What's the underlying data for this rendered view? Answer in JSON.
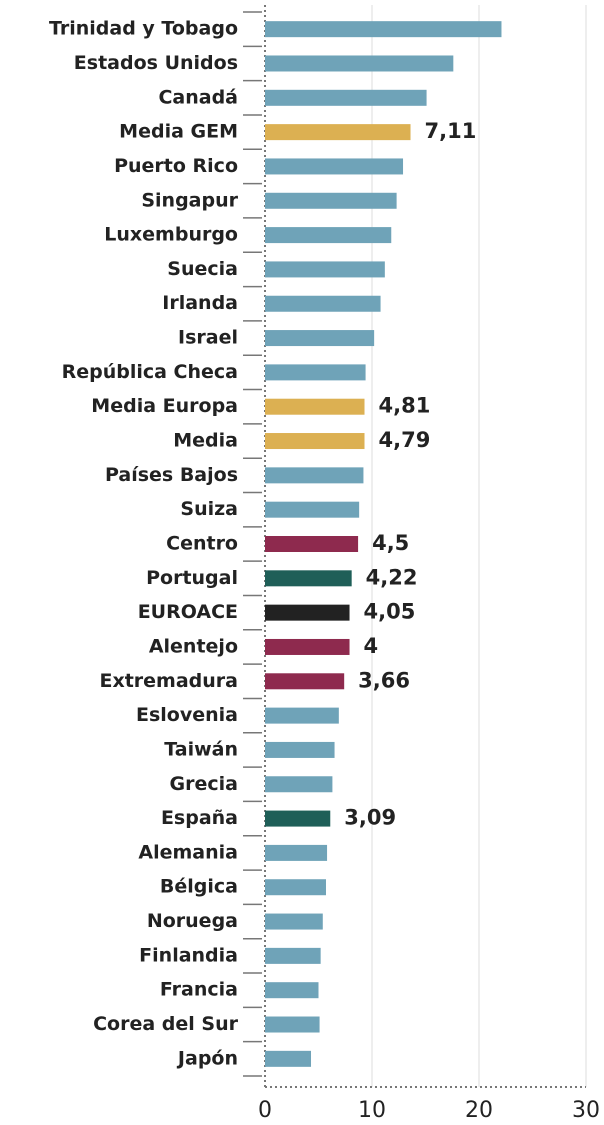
{
  "chart_data": {
    "type": "barh",
    "categories": [
      "Trinidad y Tobago",
      "Estados Unidos",
      "Canadá",
      "Media GEM",
      "Puerto Rico",
      "Singapur",
      "Luxemburgo",
      "Suecia",
      "Irlanda",
      "Israel",
      "República Checa",
      "Media Europa",
      "Media",
      "Países Bajos",
      "Suiza",
      "Centro",
      "Portugal",
      "EUROACE",
      "Alentejo",
      "Extremadura",
      "Eslovenia",
      "Taiwán",
      "Grecia",
      "España",
      "Alemania",
      "Bélgica",
      "Noruega",
      "Finlandia",
      "Francia",
      "Corea del Sur",
      "Japón"
    ],
    "values": [
      22.1,
      17.6,
      15.1,
      13.6,
      12.9,
      12.3,
      11.8,
      11.2,
      10.8,
      10.2,
      9.4,
      9.3,
      9.3,
      9.2,
      8.8,
      8.7,
      8.1,
      7.9,
      7.9,
      7.4,
      6.9,
      6.5,
      6.3,
      6.1,
      5.8,
      5.7,
      5.4,
      5.2,
      5.0,
      5.1,
      4.3
    ],
    "colors": [
      "#6fa3b8",
      "#6fa3b8",
      "#6fa3b8",
      "#dcb052",
      "#6fa3b8",
      "#6fa3b8",
      "#6fa3b8",
      "#6fa3b8",
      "#6fa3b8",
      "#6fa3b8",
      "#6fa3b8",
      "#dcb052",
      "#dcb052",
      "#6fa3b8",
      "#6fa3b8",
      "#8e2a4e",
      "#1f5f58",
      "#222222",
      "#8e2a4e",
      "#8e2a4e",
      "#6fa3b8",
      "#6fa3b8",
      "#6fa3b8",
      "#1f5f58",
      "#6fa3b8",
      "#6fa3b8",
      "#6fa3b8",
      "#6fa3b8",
      "#6fa3b8",
      "#6fa3b8",
      "#6fa3b8"
    ],
    "annotations": [
      null,
      null,
      null,
      "7,11",
      null,
      null,
      null,
      null,
      null,
      null,
      null,
      "4,81",
      "4,79",
      null,
      null,
      "4,5",
      "4,22",
      "4,05",
      "4",
      "3,66",
      null,
      null,
      null,
      "3,09",
      null,
      null,
      null,
      null,
      null,
      null,
      null
    ],
    "xlim": [
      0,
      30
    ],
    "xticks": [
      0,
      10,
      20,
      30
    ],
    "grid": true
  }
}
